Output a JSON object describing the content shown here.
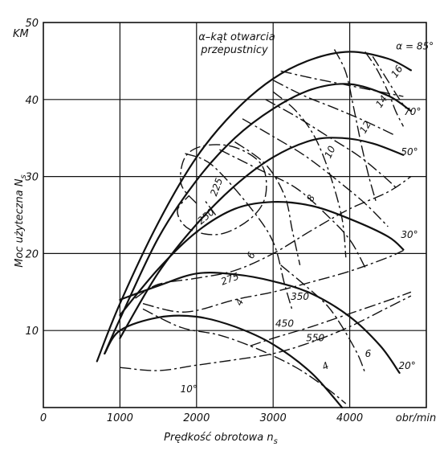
{
  "chart_data": {
    "type": "line",
    "title": "",
    "annotation": [
      "α–kąt otwarcia",
      "przepustnicy"
    ],
    "ylabel": "Moc użyteczna N",
    "ylabel_sub": "s",
    "yunit": "KM",
    "xlabel": "Prędkość obrotowa n",
    "xlabel_sub": "s",
    "xunit": "obr/min",
    "xlim": [
      0,
      5000
    ],
    "ylim": [
      0,
      50
    ],
    "xticks": [
      0,
      1000,
      2000,
      3000,
      4000
    ],
    "yticks": [
      10,
      20,
      30,
      40,
      50
    ],
    "grid": true,
    "series": [
      {
        "name": "α = 85°",
        "points": [
          [
            700,
            6
          ],
          [
            1000,
            13.5
          ],
          [
            1500,
            24
          ],
          [
            2000,
            32.5
          ],
          [
            2500,
            38.5
          ],
          [
            3000,
            42.7
          ],
          [
            3500,
            45.2
          ],
          [
            4000,
            46.2
          ],
          [
            4500,
            45.3
          ],
          [
            4800,
            43.8
          ]
        ]
      },
      {
        "name": "70°",
        "points": [
          [
            800,
            7
          ],
          [
            1000,
            11.5
          ],
          [
            1500,
            22
          ],
          [
            2000,
            29.5
          ],
          [
            2500,
            35
          ],
          [
            3000,
            38.8
          ],
          [
            3500,
            41.3
          ],
          [
            4000,
            42
          ],
          [
            4500,
            40.5
          ],
          [
            4800,
            38.5
          ]
        ]
      },
      {
        "name": "50°",
        "points": [
          [
            1000,
            9
          ],
          [
            1500,
            17.5
          ],
          [
            2000,
            23.8
          ],
          [
            2500,
            28.8
          ],
          [
            3000,
            32.5
          ],
          [
            3500,
            34.7
          ],
          [
            3900,
            35
          ],
          [
            4300,
            34.3
          ],
          [
            4700,
            32.8
          ]
        ]
      },
      {
        "name": "30°",
        "points": [
          [
            1000,
            12
          ],
          [
            1500,
            18
          ],
          [
            2000,
            22.8
          ],
          [
            2500,
            25.8
          ],
          [
            3000,
            26.7
          ],
          [
            3500,
            26.2
          ],
          [
            4000,
            24.5
          ],
          [
            4500,
            22.2
          ],
          [
            4700,
            20.5
          ]
        ]
      },
      {
        "name": "20°",
        "points": [
          [
            1000,
            14
          ],
          [
            1500,
            15.8
          ],
          [
            2000,
            17.4
          ],
          [
            2500,
            17.3
          ],
          [
            3000,
            16.4
          ],
          [
            3500,
            14.8
          ],
          [
            4000,
            11.8
          ],
          [
            4400,
            8
          ],
          [
            4650,
            4.5
          ]
        ]
      },
      {
        "name": "10°",
        "points": [
          [
            800,
            7
          ],
          [
            1000,
            10
          ],
          [
            1500,
            11.7
          ],
          [
            2000,
            11.8
          ],
          [
            2500,
            10.5
          ],
          [
            3000,
            8.2
          ],
          [
            3500,
            4.5
          ],
          [
            3900,
            0
          ]
        ]
      }
    ],
    "consumption_lines": [
      {
        "label": "225",
        "points": [
          [
            2000,
            26.5
          ],
          [
            1800,
            29
          ],
          [
            1850,
            32.5
          ],
          [
            2100,
            34
          ],
          [
            2500,
            33.8
          ],
          [
            2850,
            31.5
          ],
          [
            2900,
            27.5
          ],
          [
            2700,
            24.5
          ],
          [
            2300,
            22.5
          ],
          [
            1900,
            23.2
          ],
          [
            1750,
            25.5
          ],
          [
            1900,
            27.5
          ]
        ]
      },
      {
        "label": "250",
        "points": [
          [
            2250,
            25
          ],
          [
            2100,
            27
          ]
        ]
      },
      {
        "label": "275",
        "points": [
          [
            1200,
            14.2
          ],
          [
            1500,
            16
          ],
          [
            2000,
            16.8
          ],
          [
            2500,
            17.8
          ],
          [
            3000,
            20
          ],
          [
            3500,
            23
          ],
          [
            4000,
            25.8
          ],
          [
            4500,
            28
          ],
          [
            4800,
            30
          ]
        ]
      },
      {
        "label": "350",
        "points": [
          [
            1300,
            13.5
          ],
          [
            1700,
            12.5
          ],
          [
            2000,
            12.6
          ],
          [
            2500,
            14
          ],
          [
            3000,
            15
          ],
          [
            3500,
            16.3
          ],
          [
            4000,
            17.7
          ],
          [
            4500,
            19.5
          ],
          [
            4700,
            20.4
          ]
        ]
      },
      {
        "label": "450",
        "points": [
          [
            2700,
            8
          ],
          [
            3000,
            9
          ],
          [
            3500,
            10.5
          ],
          [
            4000,
            12.2
          ],
          [
            4500,
            13.9
          ],
          [
            4800,
            15
          ]
        ]
      },
      {
        "label": "550",
        "points": [
          [
            1000,
            5.2
          ],
          [
            1500,
            4.8
          ],
          [
            2000,
            5.5
          ],
          [
            2500,
            6.2
          ],
          [
            3000,
            7
          ],
          [
            3500,
            8.5
          ],
          [
            4000,
            10.5
          ],
          [
            4500,
            13
          ],
          [
            4800,
            14.5
          ]
        ]
      },
      {
        "label": "4",
        "points": [
          [
            1300,
            12.8
          ],
          [
            1800,
            10.4
          ],
          [
            2300,
            9.4
          ],
          [
            2800,
            7.6
          ],
          [
            3300,
            5.2
          ],
          [
            3700,
            2.5
          ],
          [
            3950,
            0.5
          ]
        ]
      },
      {
        "label": "6",
        "points": [
          [
            3100,
            18.5
          ],
          [
            3400,
            16
          ],
          [
            3700,
            13.3
          ],
          [
            3900,
            10.5
          ],
          [
            4100,
            7
          ],
          [
            4200,
            4.5
          ]
        ]
      },
      {
        "label": "8",
        "points": [
          [
            2300,
            33.5
          ],
          [
            2800,
            31
          ],
          [
            3300,
            28.5
          ],
          [
            3700,
            25
          ],
          [
            4000,
            21.8
          ],
          [
            4200,
            18.2
          ]
        ]
      },
      {
        "label": "10",
        "points": [
          [
            2600,
            37.5
          ],
          [
            3000,
            35.2
          ],
          [
            3400,
            32.8
          ],
          [
            3800,
            29.8
          ],
          [
            4200,
            26.5
          ],
          [
            4500,
            23.5
          ]
        ]
      },
      {
        "label": "12",
        "points": [
          [
            2900,
            40
          ],
          [
            3300,
            37.8
          ],
          [
            3700,
            35.3
          ],
          [
            4100,
            32.8
          ],
          [
            4400,
            30.4
          ],
          [
            4600,
            28.6
          ]
        ]
      },
      {
        "label": "14",
        "points": [
          [
            3000,
            42.5
          ],
          [
            3400,
            40.5
          ],
          [
            3800,
            38.9
          ],
          [
            4200,
            37.2
          ],
          [
            4600,
            35.3
          ]
        ]
      },
      {
        "label": "16",
        "points": [
          [
            3100,
            43.7
          ],
          [
            3500,
            42.8
          ],
          [
            3900,
            42
          ],
          [
            4300,
            41.2
          ],
          [
            4700,
            40.4
          ]
        ]
      },
      {
        "label": "",
        "points": [
          [
            1850,
            33
          ],
          [
            2200,
            31.5
          ],
          [
            2700,
            26
          ],
          [
            3000,
            21.5
          ],
          [
            3150,
            16
          ],
          [
            3250,
            12.6
          ]
        ]
      },
      {
        "label": "",
        "points": [
          [
            2500,
            34.5
          ],
          [
            2900,
            31.6
          ],
          [
            3150,
            27.5
          ],
          [
            3250,
            23
          ],
          [
            3350,
            18.5
          ]
        ]
      },
      {
        "label": "",
        "points": [
          [
            3000,
            41
          ],
          [
            3300,
            38.5
          ],
          [
            3550,
            35
          ],
          [
            3750,
            30
          ],
          [
            3900,
            24.5
          ],
          [
            3950,
            19.5
          ]
        ]
      },
      {
        "label": "",
        "points": [
          [
            3800,
            46.5
          ],
          [
            3950,
            43.5
          ],
          [
            4050,
            39
          ],
          [
            4150,
            34.2
          ],
          [
            4250,
            30
          ],
          [
            4350,
            26.5
          ]
        ]
      },
      {
        "label": "",
        "points": [
          [
            4200,
            46.2
          ],
          [
            4350,
            44
          ],
          [
            4500,
            41
          ],
          [
            4600,
            38.5
          ],
          [
            4700,
            36.5
          ]
        ]
      },
      {
        "label": "",
        "points": [
          [
            4300,
            45.6
          ],
          [
            4450,
            43.2
          ],
          [
            4600,
            40.8
          ],
          [
            4700,
            39.3
          ]
        ]
      }
    ],
    "annotations_on_curves": {
      "series": [
        "α = 85°",
        "70°",
        "50°",
        "30°",
        "20°",
        "10°"
      ],
      "consumption": [
        "225",
        "250",
        "275",
        "350",
        "450",
        "550",
        "4",
        "6",
        "4",
        "6",
        "8",
        "10",
        "12",
        "14",
        "16"
      ]
    }
  }
}
